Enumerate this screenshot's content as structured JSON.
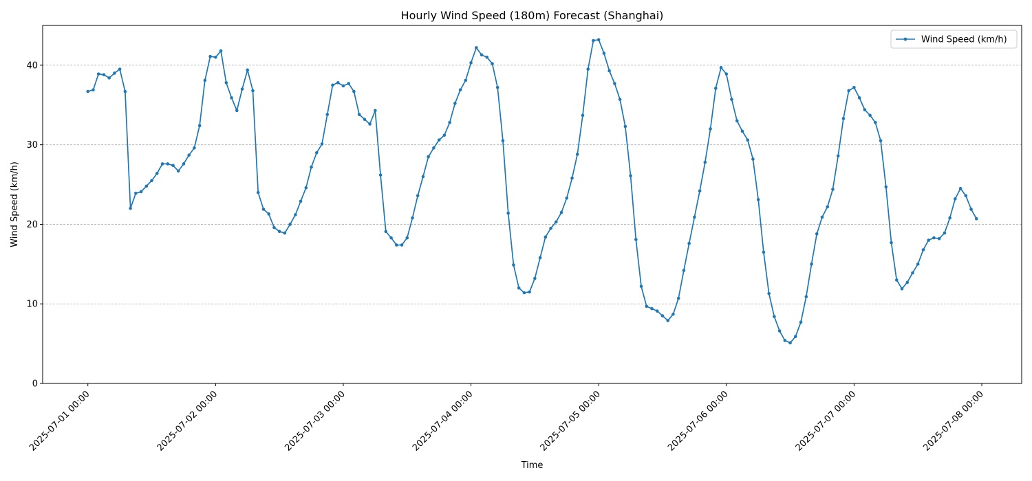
{
  "chart_data": {
    "type": "line",
    "title": "Hourly Wind Speed (180m) Forecast (Shanghai)",
    "xlabel": "Time",
    "ylabel": "Wind Speed (km/h)",
    "ylim": [
      0,
      45
    ],
    "grid": "y-only-dashed",
    "legend_position": "upper right",
    "x_range": [
      "2025-06-30 15:30",
      "2025-07-08 07:30"
    ],
    "x_ticks": [
      "2025-07-01 00:00",
      "2025-07-02 00:00",
      "2025-07-03 00:00",
      "2025-07-04 00:00",
      "2025-07-05 00:00",
      "2025-07-06 00:00",
      "2025-07-07 00:00",
      "2025-07-08 00:00"
    ],
    "y_ticks": [
      "0",
      "10",
      "20",
      "30",
      "40"
    ],
    "colors": {
      "series": "#1f77b4",
      "grid": "#b0b0b0",
      "axis": "#000000"
    },
    "series": [
      {
        "name": "Wind Speed (km/h)",
        "x_start": "2025-07-01 00:00",
        "x_step": "1 hour",
        "values": [
          36.7,
          36.9,
          38.9,
          38.8,
          38.4,
          39.0,
          39.5,
          36.7,
          22.0,
          23.9,
          24.1,
          24.8,
          25.5,
          26.4,
          27.6,
          27.6,
          27.4,
          26.7,
          27.6,
          28.7,
          29.6,
          32.4,
          38.1,
          41.1,
          41.0,
          41.8,
          37.8,
          35.9,
          34.3,
          37.0,
          39.4,
          36.8,
          24.0,
          21.9,
          21.3,
          19.6,
          19.1,
          18.9,
          20.0,
          21.2,
          22.9,
          24.6,
          27.2,
          29.0,
          30.1,
          33.8,
          37.5,
          37.8,
          37.4,
          37.7,
          36.7,
          33.8,
          33.2,
          32.6,
          34.3,
          26.2,
          19.1,
          18.3,
          17.4,
          17.4,
          18.3,
          20.8,
          23.6,
          26.0,
          28.5,
          29.6,
          30.6,
          31.2,
          32.8,
          35.2,
          36.9,
          38.1,
          40.3,
          42.2,
          41.3,
          41.0,
          40.2,
          37.2,
          30.5,
          21.4,
          14.9,
          12.0,
          11.4,
          11.5,
          13.2,
          15.8,
          18.4,
          19.5,
          20.3,
          21.5,
          23.3,
          25.8,
          28.8,
          33.7,
          39.5,
          43.1,
          43.2,
          41.5,
          39.3,
          37.7,
          35.7,
          32.3,
          26.1,
          18.1,
          12.2,
          9.7,
          9.4,
          9.1,
          8.5,
          7.9,
          8.7,
          10.7,
          14.2,
          17.6,
          20.9,
          24.2,
          27.8,
          32.0,
          37.1,
          39.7,
          38.9,
          35.7,
          33.0,
          31.7,
          30.6,
          28.2,
          23.1,
          16.5,
          11.3,
          8.4,
          6.6,
          5.4,
          5.1,
          5.9,
          7.7,
          10.9,
          15.0,
          18.8,
          20.9,
          22.2,
          24.4,
          28.6,
          33.3,
          36.8,
          37.2,
          35.9,
          34.4,
          33.7,
          32.8,
          30.5,
          24.7,
          17.7,
          13.0,
          11.9,
          12.7,
          13.9,
          15.0,
          16.8,
          18.0,
          18.3,
          18.2,
          18.9,
          20.8,
          23.2,
          24.5,
          23.6,
          21.9,
          20.7
        ]
      }
    ]
  }
}
